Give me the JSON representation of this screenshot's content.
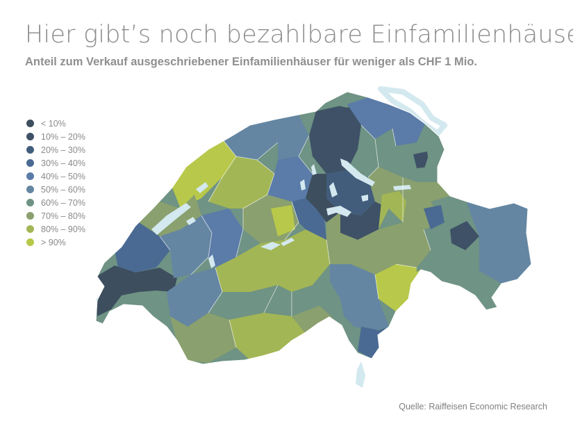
{
  "title": "Hier gibt’s noch bezahlbare Einfamilienhäuser",
  "subtitle": "Anteil zum Verkauf ausgeschriebener Einfamilienhäuser für weniger als CHF 1 Mio.",
  "legend": [
    {
      "label": "< 10%",
      "color": "#3d4e5e"
    },
    {
      "label": "10% – 20%",
      "color": "#3e5166"
    },
    {
      "label": "20% – 30%",
      "color": "#425d7c"
    },
    {
      "label": "30% – 40%",
      "color": "#4a6a93"
    },
    {
      "label": "40% – 50%",
      "color": "#5b7ba8"
    },
    {
      "label": "50% – 60%",
      "color": "#6486a2"
    },
    {
      "label": "60% – 70%",
      "color": "#6f9384"
    },
    {
      "label": "70% – 80%",
      "color": "#8aa06e"
    },
    {
      "label": "80% – 90%",
      "color": "#a3b655"
    },
    {
      "label": "> 90%",
      "color": "#b8c84a"
    }
  ],
  "water_color": "#d3e9ef",
  "source": "Quelle: Raiffeisen Economic Research"
}
